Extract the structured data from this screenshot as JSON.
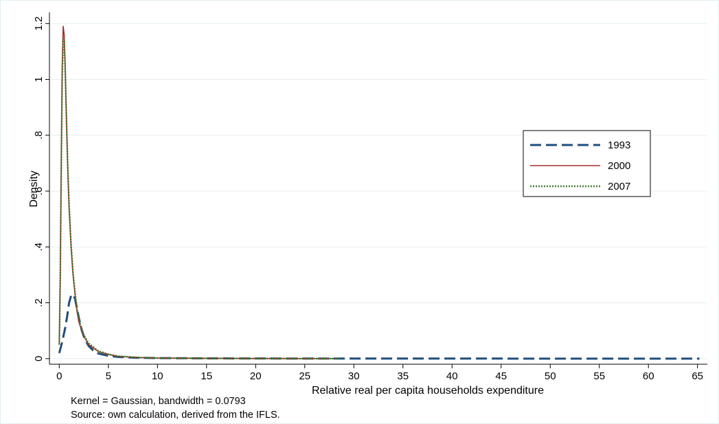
{
  "chart_data": {
    "type": "line",
    "xlabel": "Relative real per capita households expenditure",
    "ylabel": "Density",
    "xlim": [
      -1,
      66
    ],
    "ylim": [
      -0.02,
      1.24
    ],
    "x_ticks": [
      0,
      5,
      10,
      15,
      20,
      25,
      30,
      35,
      40,
      45,
      50,
      55,
      60,
      65
    ],
    "x_tick_labels": [
      "0",
      "5",
      "10",
      "15",
      "20",
      "25",
      "30",
      "35",
      "40",
      "45",
      "50",
      "55",
      "60",
      "65"
    ],
    "y_ticks": [
      0,
      0.2,
      0.4,
      0.6,
      0.8,
      1,
      1.2
    ],
    "y_tick_labels": [
      "0",
      ".2",
      ".4",
      ".6",
      ".8",
      "1",
      "1.2"
    ],
    "grid": true,
    "legend_position": "right",
    "series": [
      {
        "name": "1993",
        "color": "#1f4e79",
        "style": "dashed",
        "x": [
          0,
          0.3,
          0.6,
          0.8,
          1.0,
          1.2,
          1.4,
          1.6,
          1.8,
          2.0,
          2.3,
          2.6,
          3.0,
          3.5,
          4,
          5,
          6,
          8,
          10,
          15,
          20,
          30,
          40,
          50,
          65.2
        ],
        "y": [
          0.02,
          0.06,
          0.11,
          0.15,
          0.2,
          0.225,
          0.23,
          0.215,
          0.18,
          0.145,
          0.1,
          0.07,
          0.045,
          0.028,
          0.018,
          0.01,
          0.006,
          0.003,
          0.002,
          0.001,
          0.0005,
          0.0003,
          0.0002,
          0.0001,
          0.0001
        ]
      },
      {
        "name": "2000",
        "color": "#a52a2a",
        "style": "solid",
        "x": [
          0,
          0.1,
          0.2,
          0.3,
          0.4,
          0.5,
          0.6,
          0.7,
          0.8,
          0.9,
          1.0,
          1.2,
          1.4,
          1.6,
          1.8,
          2.0,
          2.5,
          3,
          4,
          5,
          6,
          8,
          10,
          15,
          20,
          25,
          28
        ],
        "y": [
          0.05,
          0.3,
          0.7,
          1.05,
          1.19,
          1.16,
          1.05,
          0.9,
          0.76,
          0.64,
          0.54,
          0.4,
          0.3,
          0.23,
          0.17,
          0.13,
          0.08,
          0.05,
          0.025,
          0.015,
          0.008,
          0.004,
          0.002,
          0.001,
          0.0005,
          0.0002,
          0.0001
        ]
      },
      {
        "name": "2007",
        "color": "#3a7d2a",
        "style": "dotted",
        "x": [
          0,
          0.1,
          0.2,
          0.3,
          0.4,
          0.5,
          0.6,
          0.7,
          0.8,
          0.9,
          1.0,
          1.2,
          1.4,
          1.6,
          1.8,
          2.0,
          2.5,
          3,
          4,
          5,
          6,
          8,
          10,
          15,
          20,
          25,
          28.5
        ],
        "y": [
          0.05,
          0.28,
          0.66,
          1.0,
          1.15,
          1.14,
          1.04,
          0.9,
          0.77,
          0.65,
          0.55,
          0.41,
          0.31,
          0.24,
          0.18,
          0.14,
          0.085,
          0.055,
          0.027,
          0.016,
          0.009,
          0.004,
          0.002,
          0.001,
          0.0005,
          0.0002,
          0.0001
        ]
      }
    ]
  },
  "notes": {
    "kernel": "Kernel = Gaussian, bandwidth = 0.0793",
    "source": "Source: own calculation, derived from the IFLS."
  }
}
